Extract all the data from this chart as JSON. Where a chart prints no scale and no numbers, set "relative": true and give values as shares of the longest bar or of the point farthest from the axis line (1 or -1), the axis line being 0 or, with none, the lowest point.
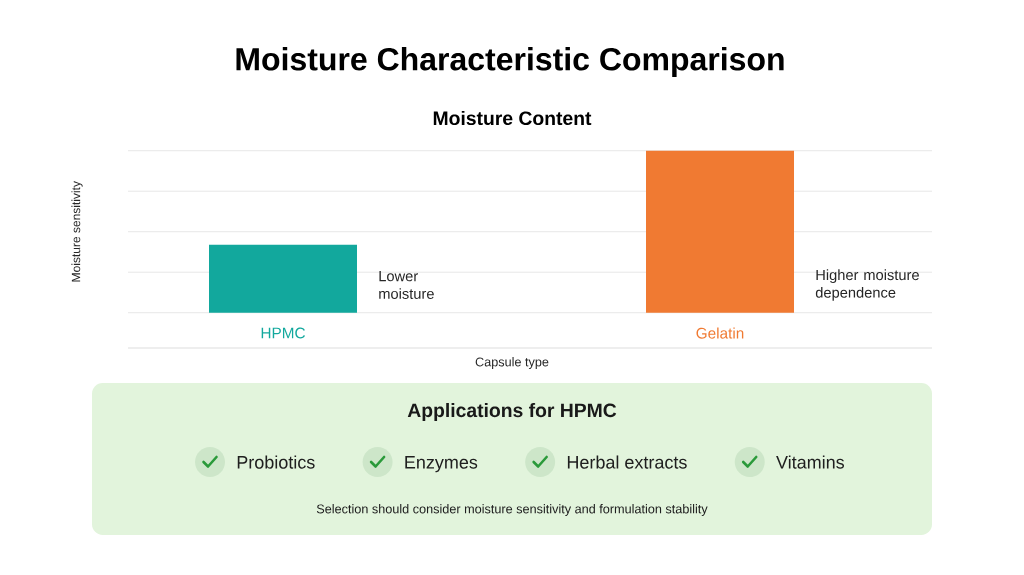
{
  "chart_data": [
    {
      "type": "bar",
      "title": "Moisture Characteristic Comparison",
      "subtitle": "Moisture Content",
      "xlabel": "Capsule type",
      "ylabel": "Moisture sensitivity",
      "categories": [
        "HPMC",
        "Gelatin"
      ],
      "values": [
        0.42,
        1
      ],
      "colors": [
        "#12a89d",
        "#f07a32"
      ],
      "relative": true,
      "grid": "y",
      "annotations": [
        "Lower\nmoisture",
        "Higher moisture\ndependence"
      ]
    },
    {
      "type": "other",
      "title": "Applications for HPMC",
      "annotations": [
        "Probiotics",
        "Enzymes",
        "Herbal extracts",
        "Vitamins",
        "Selection should consider moisture sensitivity and formulation stability"
      ]
    }
  ]
}
